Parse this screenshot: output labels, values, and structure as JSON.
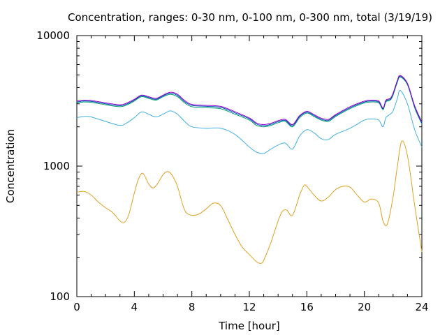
{
  "chart_data": {
    "type": "line",
    "title": "Concentration, ranges: 0-30 nm, 0-100 nm, 0-300 nm, total (3/19/19)",
    "xlabel": "Time [hour]",
    "ylabel": "Concentration",
    "xlim": [
      0,
      24
    ],
    "ylim": [
      100,
      10000
    ],
    "yscale": "log",
    "grid": false,
    "legend": "none",
    "xticks": [
      "0",
      "4",
      "8",
      "12",
      "16",
      "20",
      "24"
    ],
    "yticks": [
      "100",
      "1000",
      "10000"
    ],
    "series": [
      {
        "color": "#e0a020",
        "x": [
          0,
          0.5,
          1,
          1.5,
          2,
          2.5,
          3,
          3.3,
          3.6,
          4,
          4.3,
          4.6,
          5,
          5.3,
          5.6,
          6,
          6.3,
          6.6,
          7,
          7.5,
          8,
          8.5,
          9,
          9.5,
          10,
          10.5,
          11,
          11.5,
          12,
          12.5,
          12.8,
          13,
          13.5,
          14,
          14.3,
          14.6,
          15,
          15.5,
          15.8,
          16,
          16.5,
          17,
          17.5,
          18,
          18.5,
          19,
          19.5,
          20,
          20.5,
          21,
          21.3,
          21.6,
          22,
          22.3,
          22.6,
          23,
          23.5,
          24
        ],
        "values": [
          630,
          640,
          600,
          530,
          480,
          440,
          380,
          370,
          420,
          620,
          800,
          880,
          730,
          680,
          730,
          860,
          910,
          860,
          700,
          460,
          420,
          430,
          470,
          520,
          500,
          390,
          300,
          240,
          210,
          185,
          180,
          190,
          260,
          380,
          450,
          460,
          420,
          600,
          710,
          700,
          600,
          540,
          580,
          660,
          700,
          690,
          600,
          530,
          560,
          520,
          380,
          360,
          580,
          1000,
          1550,
          1200,
          500,
          220
        ]
      },
      {
        "color": "#40b0e0",
        "x": [
          0,
          0.5,
          1,
          2,
          3,
          3.5,
          4,
          4.5,
          5,
          5.5,
          6,
          6.5,
          7,
          7.5,
          8,
          9,
          10,
          11,
          12,
          12.5,
          13,
          13.5,
          14,
          14.5,
          15,
          15.5,
          16,
          16.5,
          17,
          17.5,
          18,
          19,
          20,
          20.5,
          21,
          21.3,
          21.5,
          21.8,
          22,
          22.3,
          22.5,
          23,
          23.5,
          24
        ],
        "values": [
          2350,
          2400,
          2380,
          2200,
          2050,
          2150,
          2350,
          2600,
          2500,
          2380,
          2500,
          2650,
          2500,
          2200,
          2000,
          1950,
          1950,
          1750,
          1400,
          1280,
          1250,
          1350,
          1450,
          1500,
          1350,
          1700,
          1900,
          1800,
          1620,
          1600,
          1750,
          1950,
          2250,
          2300,
          2250,
          2000,
          2350,
          2500,
          2650,
          3300,
          3800,
          3000,
          1900,
          1400
        ]
      },
      {
        "color": "#009e73",
        "x": [
          0,
          0.5,
          1,
          2,
          3,
          3.5,
          4,
          4.5,
          5,
          5.5,
          6,
          6.5,
          7,
          7.5,
          8,
          9,
          10,
          11,
          12,
          12.5,
          13,
          13.5,
          14,
          14.5,
          15,
          15.5,
          16,
          16.5,
          17,
          17.5,
          18,
          19,
          20,
          20.5,
          21,
          21.3,
          21.5,
          21.8,
          22,
          22.3,
          22.5,
          23,
          23.5,
          24
        ],
        "values": [
          3050,
          3100,
          3080,
          2950,
          2850,
          2950,
          3150,
          3400,
          3300,
          3200,
          3400,
          3550,
          3400,
          3050,
          2850,
          2800,
          2750,
          2500,
          2250,
          2050,
          2000,
          2050,
          2150,
          2200,
          2000,
          2350,
          2550,
          2400,
          2250,
          2200,
          2400,
          2750,
          3050,
          3100,
          3050,
          2700,
          3100,
          3200,
          3500,
          4400,
          4800,
          4200,
          2800,
          2100
        ]
      },
      {
        "color": "#0050b0",
        "x": [
          0,
          0.5,
          1,
          2,
          3,
          3.5,
          4,
          4.5,
          5,
          5.5,
          6,
          6.5,
          7,
          7.5,
          8,
          9,
          10,
          11,
          12,
          12.5,
          13,
          13.5,
          14,
          14.5,
          15,
          15.5,
          16,
          16.5,
          17,
          17.5,
          18,
          19,
          20,
          20.5,
          21,
          21.3,
          21.5,
          21.8,
          22,
          22.3,
          22.5,
          23,
          23.5,
          24
        ],
        "values": [
          3100,
          3150,
          3130,
          3000,
          2900,
          3000,
          3200,
          3450,
          3350,
          3250,
          3450,
          3620,
          3480,
          3120,
          2920,
          2870,
          2820,
          2560,
          2300,
          2100,
          2040,
          2090,
          2190,
          2240,
          2040,
          2400,
          2590,
          2440,
          2290,
          2240,
          2440,
          2800,
          3100,
          3150,
          3100,
          2740,
          3150,
          3250,
          3560,
          4480,
          4880,
          4250,
          2850,
          2140
        ]
      },
      {
        "color": "#9400d3",
        "x": [
          0,
          0.5,
          1,
          2,
          3,
          3.5,
          4,
          4.5,
          5,
          5.5,
          6,
          6.5,
          7,
          7.5,
          8,
          9,
          10,
          11,
          12,
          12.5,
          13,
          13.5,
          14,
          14.5,
          15,
          15.5,
          16,
          16.5,
          17,
          17.5,
          18,
          19,
          20,
          20.5,
          21,
          21.3,
          21.5,
          21.8,
          22,
          22.3,
          22.5,
          23,
          23.5,
          24
        ],
        "values": [
          3150,
          3200,
          3180,
          3050,
          2950,
          3050,
          3250,
          3500,
          3400,
          3300,
          3500,
          3680,
          3550,
          3180,
          2970,
          2920,
          2870,
          2610,
          2340,
          2140,
          2080,
          2130,
          2230,
          2280,
          2080,
          2440,
          2630,
          2480,
          2330,
          2280,
          2480,
          2850,
          3150,
          3200,
          3150,
          2780,
          3200,
          3300,
          3620,
          4550,
          4950,
          4300,
          2900,
          2180
        ]
      }
    ]
  }
}
